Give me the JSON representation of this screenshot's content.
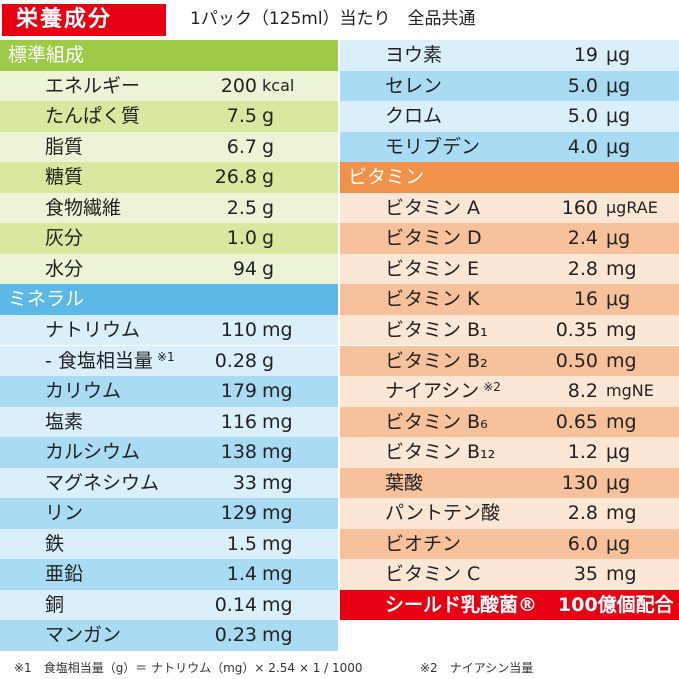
{
  "header": {
    "badge": "栄養成分",
    "subtitle": "1パック（125ml）当たり　全品共通"
  },
  "sections": [
    {
      "title": "標準組成",
      "colors": {
        "header": "#9dcb47",
        "light": "#ecf3d6",
        "dark": "#d6e99e"
      },
      "items": [
        {
          "name": "エネルギー",
          "value": "200",
          "unit": "kcal"
        },
        {
          "name": "たんぱく質",
          "value": "7.5",
          "unit": "g"
        },
        {
          "name": "脂質",
          "value": "6.7",
          "unit": "g"
        },
        {
          "name": "糖質",
          "value": "26.8",
          "unit": "g"
        },
        {
          "name": "食物繊維",
          "value": "2.5",
          "unit": "g"
        },
        {
          "name": "灰分",
          "value": "1.0",
          "unit": "g"
        },
        {
          "name": "水分",
          "value": "94",
          "unit": "g"
        }
      ]
    },
    {
      "title": "ミネラル",
      "colors": {
        "header": "#5cb8e6",
        "light": "#daeffa",
        "dark": "#a9dbf3"
      },
      "items": [
        {
          "name": "ナトリウム",
          "value": "110",
          "unit": "mg"
        },
        {
          "name": "- 食塩相当量",
          "note": "※1",
          "value": "0.28",
          "unit": "g"
        },
        {
          "name": "カリウム",
          "value": "179",
          "unit": "mg"
        },
        {
          "name": "塩素",
          "value": "116",
          "unit": "mg"
        },
        {
          "name": "カルシウム",
          "value": "138",
          "unit": "mg"
        },
        {
          "name": "マグネシウム",
          "value": "33",
          "unit": "mg"
        },
        {
          "name": "リン",
          "value": "129",
          "unit": "mg"
        },
        {
          "name": "鉄",
          "value": "1.5",
          "unit": "mg"
        },
        {
          "name": "亜鉛",
          "value": "1.4",
          "unit": "mg"
        },
        {
          "name": "銅",
          "value": "0.14",
          "unit": "mg"
        },
        {
          "name": "マンガン",
          "value": "0.23",
          "unit": "mg"
        },
        {
          "name": "ヨウ素",
          "value": "19",
          "unit": "μg"
        },
        {
          "name": "セレン",
          "value": "5.0",
          "unit": "μg"
        },
        {
          "name": "クロム",
          "value": "5.0",
          "unit": "μg"
        },
        {
          "name": "モリブデン",
          "value": "4.0",
          "unit": "μg"
        }
      ]
    },
    {
      "title": "ビタミン",
      "colors": {
        "header": "#f0924a",
        "light": "#fce6d6",
        "dark": "#f7c29b"
      },
      "items": [
        {
          "name": "ビタミン A",
          "value": "160",
          "unit": "μgRAE"
        },
        {
          "name": "ビタミン D",
          "value": "2.4",
          "unit": "μg"
        },
        {
          "name": "ビタミン E",
          "value": "2.8",
          "unit": "mg"
        },
        {
          "name": "ビタミン K",
          "value": "16",
          "unit": "μg"
        },
        {
          "name": "ビタミン B₁",
          "value": "0.35",
          "unit": "mg"
        },
        {
          "name": "ビタミン B₂",
          "value": "0.50",
          "unit": "mg"
        },
        {
          "name": "ナイアシン",
          "note": "※2",
          "value": "8.2",
          "unit": "mgNE"
        },
        {
          "name": "ビタミン B₆",
          "value": "0.65",
          "unit": "mg"
        },
        {
          "name": "ビタミン B₁₂",
          "value": "1.2",
          "unit": "μg"
        },
        {
          "name": "葉酸",
          "value": "130",
          "unit": "μg"
        },
        {
          "name": "パントテン酸",
          "value": "2.8",
          "unit": "mg"
        },
        {
          "name": "ビオチン",
          "value": "6.0",
          "unit": "μg"
        },
        {
          "name": "ビタミン C",
          "value": "35",
          "unit": "mg"
        }
      ]
    }
  ],
  "highlight": {
    "name": "シールド乳酸菌®",
    "value": "100億個配合",
    "color": "#e60012"
  },
  "footnotes": [
    "※1　食塩相当量（g）＝ ナトリウム（mg）× 2.54 × 1 / 1000",
    "※2　ナイアシン当量"
  ]
}
